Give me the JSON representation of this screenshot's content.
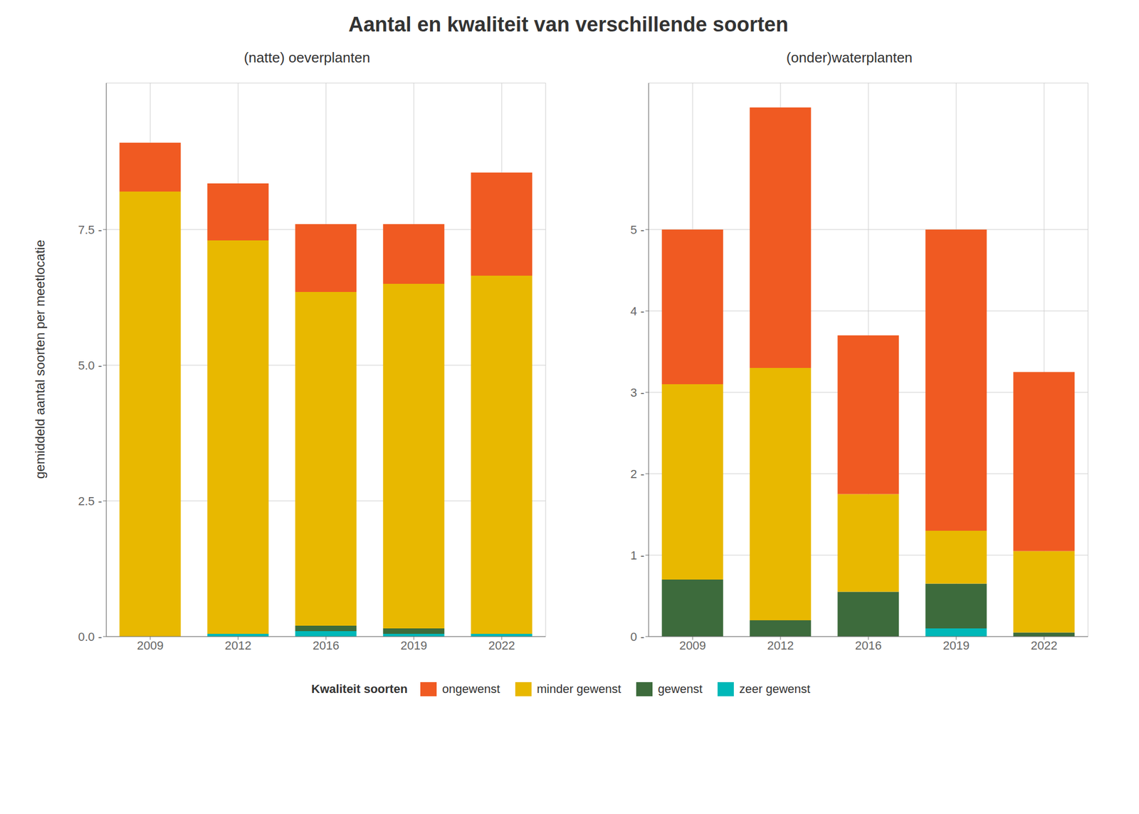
{
  "chart_data": [
    {
      "type": "bar",
      "stacked": true,
      "grid": true,
      "title": "Aantal en kwaliteit van verschillende soorten",
      "subtitle": "(natte) oeverplanten",
      "ylabel": "gemiddeld aantal soorten per meetlocatie",
      "legend": "bottom",
      "legend_title": "Kwaliteit soorten",
      "categories": [
        "2009",
        "2012",
        "2016",
        "2019",
        "2022"
      ],
      "series": [
        {
          "name": "zeer gewenst",
          "color": "#00B8B8",
          "values": [
            0.0,
            0.05,
            0.1,
            0.05,
            0.05
          ]
        },
        {
          "name": "gewenst",
          "color": "#3D6B3C",
          "values": [
            0.0,
            0.0,
            0.1,
            0.1,
            0.0
          ]
        },
        {
          "name": "minder gewenst",
          "color": "#E8B800",
          "values": [
            8.2,
            7.25,
            6.15,
            6.35,
            6.6
          ]
        },
        {
          "name": "ongewenst",
          "color": "#F05A22",
          "values": [
            0.9,
            1.05,
            1.25,
            1.1,
            1.9
          ]
        }
      ],
      "ylim": [
        0,
        10.2
      ],
      "yticks": [
        {
          "value": 0.0,
          "label": "0.0 -"
        },
        {
          "value": 2.5,
          "label": "2.5 -"
        },
        {
          "value": 5.0,
          "label": "5.0 -"
        },
        {
          "value": 7.5,
          "label": "7.5 -"
        }
      ]
    },
    {
      "type": "bar",
      "stacked": true,
      "grid": true,
      "subtitle": "(onder)waterplanten",
      "categories": [
        "2009",
        "2012",
        "2016",
        "2019",
        "2022"
      ],
      "series": [
        {
          "name": "zeer gewenst",
          "color": "#00B8B8",
          "values": [
            0.0,
            0.0,
            0.0,
            0.1,
            0.0
          ]
        },
        {
          "name": "gewenst",
          "color": "#3D6B3C",
          "values": [
            0.7,
            0.2,
            0.55,
            0.55,
            0.05
          ]
        },
        {
          "name": "minder gewenst",
          "color": "#E8B800",
          "values": [
            2.4,
            3.1,
            1.2,
            0.65,
            1.0
          ]
        },
        {
          "name": "ongewenst",
          "color": "#F05A22",
          "values": [
            1.9,
            3.2,
            1.95,
            3.7,
            2.2
          ]
        }
      ],
      "ylim": [
        0,
        6.8
      ],
      "yticks": [
        {
          "value": 0,
          "label": "0 -"
        },
        {
          "value": 1,
          "label": "1 -"
        },
        {
          "value": 2,
          "label": "2 -"
        },
        {
          "value": 3,
          "label": "3 -"
        },
        {
          "value": 4,
          "label": "4 -"
        },
        {
          "value": 5,
          "label": "5 -"
        }
      ]
    }
  ]
}
